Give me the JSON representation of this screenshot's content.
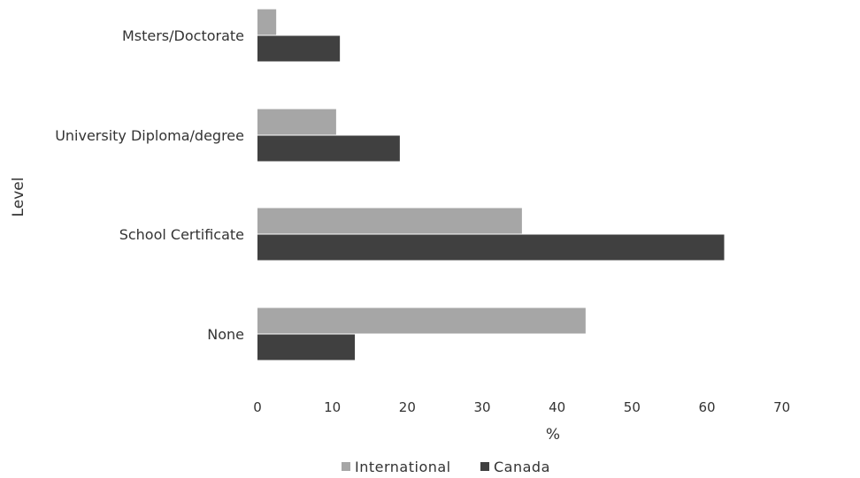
{
  "chart_data": {
    "type": "bar",
    "orientation": "horizontal",
    "categories": [
      "Msters/Doctorate",
      "University Diploma/degree",
      "School Certificate",
      "None"
    ],
    "series": [
      {
        "name": "International",
        "values": [
          2.5,
          10.5,
          35.3,
          43.8
        ],
        "color": "#a6a6a6"
      },
      {
        "name": "Canada",
        "values": [
          11,
          19,
          62.3,
          13
        ],
        "color": "#404040"
      }
    ],
    "xlabel": "%",
    "ylabel": "Level",
    "xlim": [
      0,
      70
    ],
    "xticks": [
      "0",
      "10",
      "20",
      "30",
      "40",
      "50",
      "60",
      "70"
    ],
    "grid": false,
    "legend_position": "bottom"
  }
}
